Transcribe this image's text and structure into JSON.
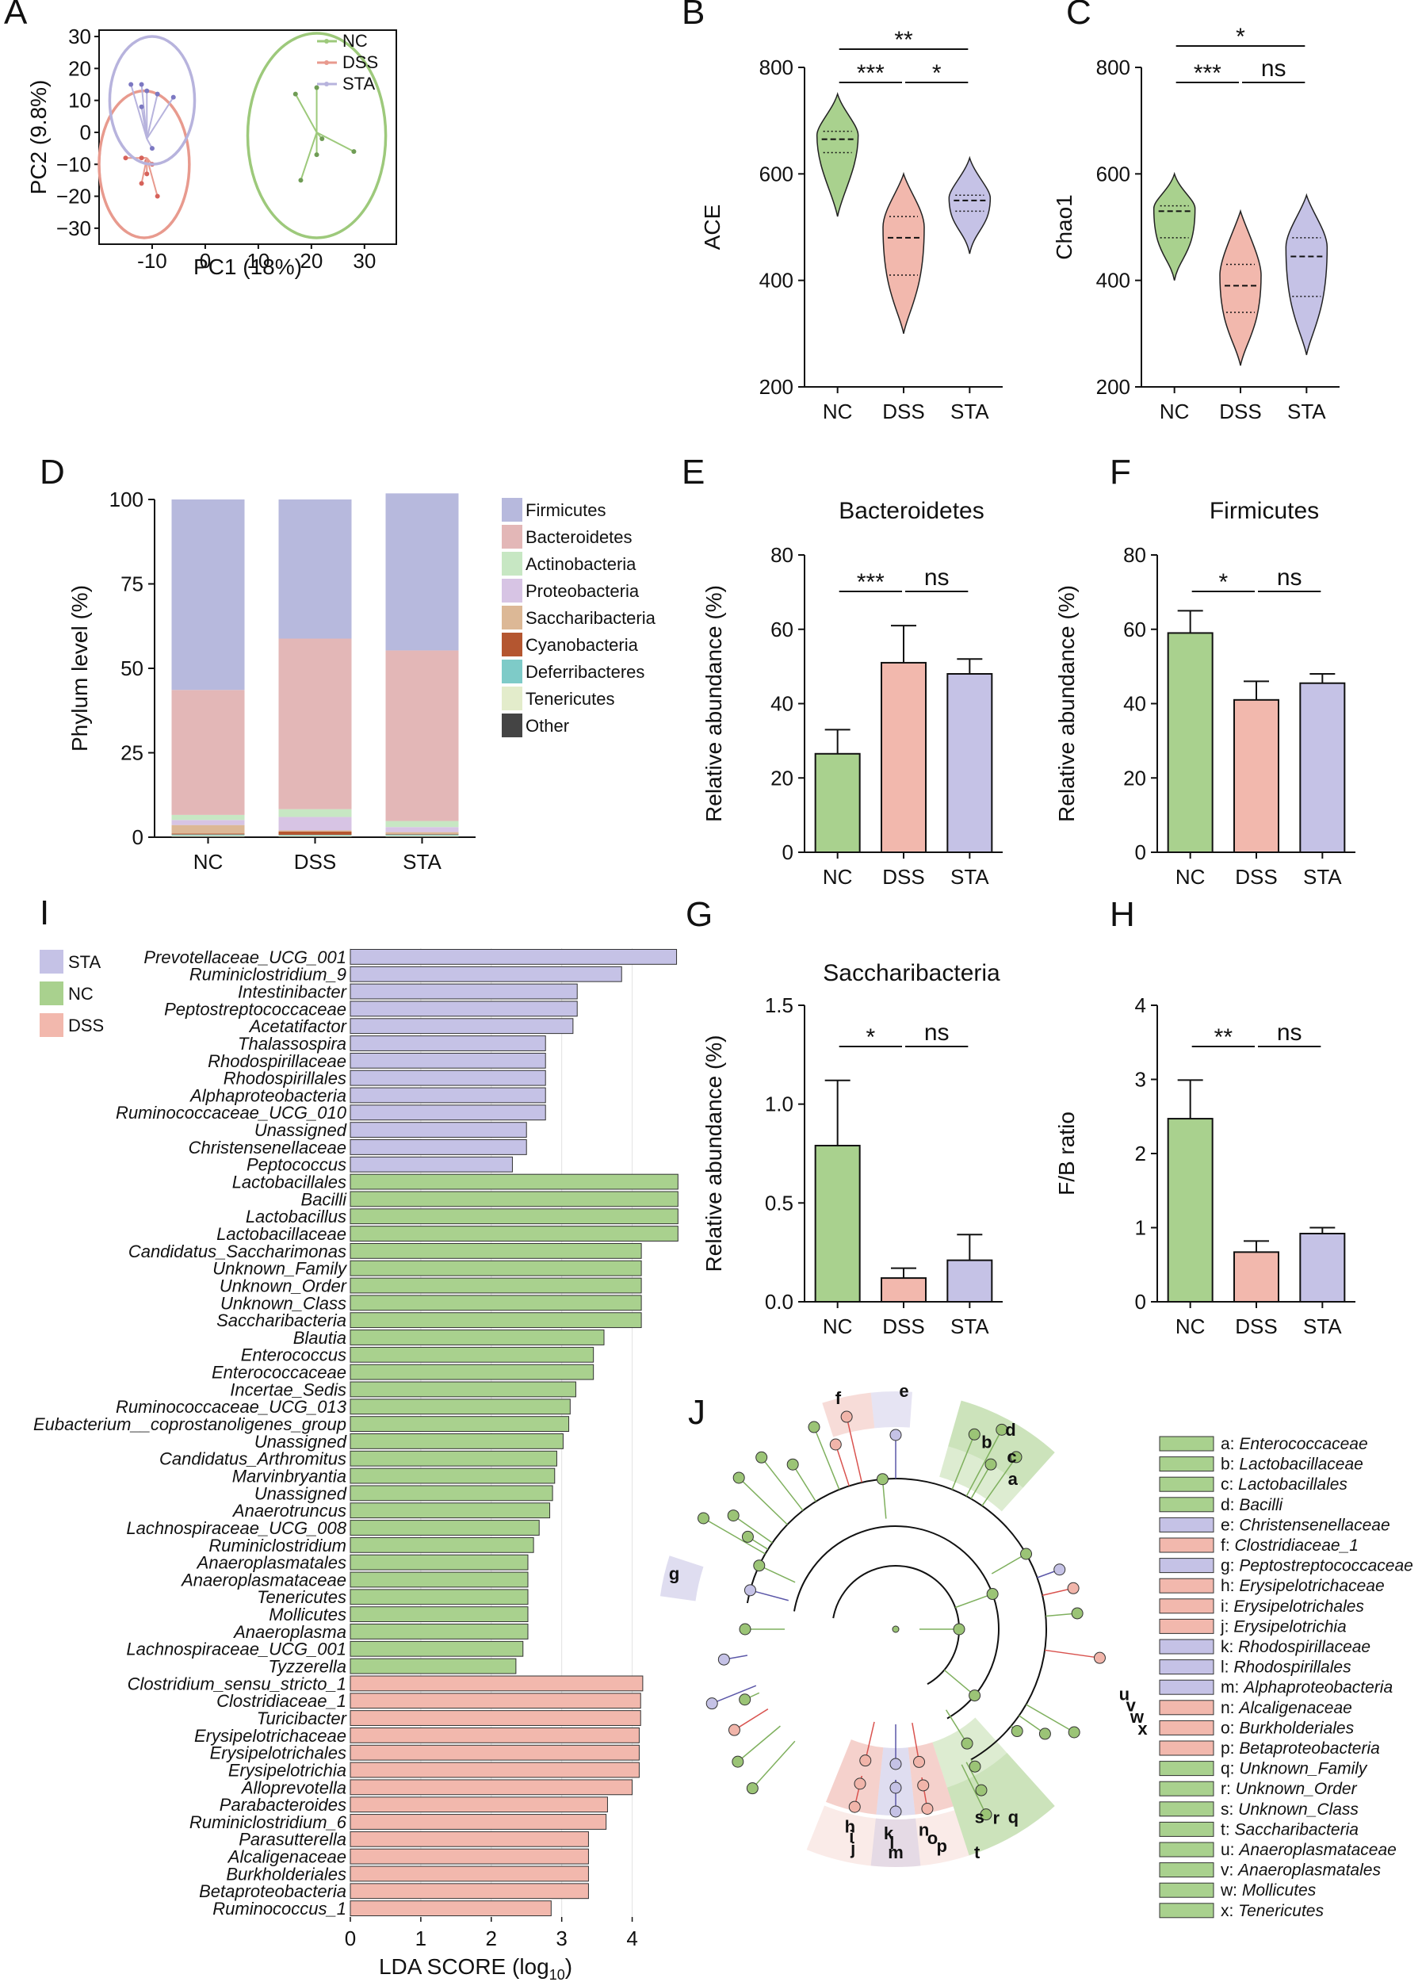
{
  "colors": {
    "NC": "#9dc97b",
    "NC_fill": "#a9d18e",
    "DSS": "#e89a8e",
    "DSS_fill": "#f2b8ad",
    "STA": "#b7b3dd",
    "STA_fill": "#c5c2e6"
  },
  "groups": [
    "NC",
    "DSS",
    "STA"
  ],
  "chart_data": [
    {
      "panel": "A",
      "type": "scatter",
      "xlabel": "PC1 (18%)",
      "ylabel": "PC2 (9.8%)",
      "xlim": [
        -20,
        36
      ],
      "ylim": [
        -35,
        32
      ],
      "xticks": [
        -10,
        0,
        10,
        20,
        30
      ],
      "yticks": [
        30,
        20,
        10,
        0,
        -10,
        -20,
        -30
      ],
      "xtick_labels": [
        "-10",
        "0",
        "10",
        "20",
        "30"
      ],
      "ytick_labels": [
        "30",
        "20",
        "10",
        "0",
        "−10",
        "−20",
        "−30"
      ],
      "legend": [
        "NC",
        "DSS",
        "STA"
      ],
      "series": [
        {
          "name": "NC",
          "centroid": [
            21,
            0
          ],
          "points": [
            [
              17,
              12
            ],
            [
              21,
              14
            ],
            [
              22,
              -2
            ],
            [
              28,
              -6
            ],
            [
              21,
              -7
            ],
            [
              18,
              -15
            ]
          ],
          "ellipse": {
            "cx": 21,
            "cy": -1,
            "rx": 13,
            "ry": 32
          }
        },
        {
          "name": "DSS",
          "centroid": [
            -11,
            -8
          ],
          "points": [
            [
              -15,
              -8
            ],
            [
              -12,
              -8
            ],
            [
              -11,
              -9
            ],
            [
              -10,
              -10
            ],
            [
              -12,
              -16
            ],
            [
              -9,
              -20
            ],
            [
              -11,
              -13
            ]
          ],
          "ellipse": {
            "cx": -11.5,
            "cy": -10,
            "rx": 8.5,
            "ry": 23
          }
        },
        {
          "name": "STA",
          "centroid": [
            -11,
            -2
          ],
          "points": [
            [
              -14,
              15
            ],
            [
              -12,
              15
            ],
            [
              -11,
              13
            ],
            [
              -9,
              12
            ],
            [
              -6,
              11
            ],
            [
              -12,
              8
            ],
            [
              -10,
              -5
            ]
          ],
          "ellipse": {
            "cx": -10,
            "cy": 10,
            "rx": 8,
            "ry": 20
          }
        }
      ]
    },
    {
      "panel": "B",
      "type": "violin",
      "ylabel": "ACE",
      "categories": [
        "NC",
        "DSS",
        "STA"
      ],
      "ylim": [
        200,
        800
      ],
      "yticks": [
        200,
        400,
        600,
        800
      ],
      "medians": [
        665,
        480,
        550
      ],
      "q1": [
        640,
        410,
        530
      ],
      "q3": [
        680,
        520,
        560
      ],
      "ranges": [
        [
          520,
          750
        ],
        [
          300,
          600
        ],
        [
          450,
          630
        ]
      ],
      "significance": [
        {
          "from": 0,
          "to": 2,
          "label": "**",
          "level": 2
        },
        {
          "from": 0,
          "to": 1,
          "label": "***",
          "level": 1
        },
        {
          "from": 1,
          "to": 2,
          "label": "*",
          "level": 1
        }
      ]
    },
    {
      "panel": "C",
      "type": "violin",
      "ylabel": "Chao1",
      "categories": [
        "NC",
        "DSS",
        "STA"
      ],
      "ylim": [
        200,
        800
      ],
      "yticks": [
        200,
        400,
        600,
        800
      ],
      "medians": [
        530,
        390,
        445
      ],
      "q1": [
        480,
        340,
        370
      ],
      "q3": [
        540,
        430,
        480
      ],
      "ranges": [
        [
          400,
          600
        ],
        [
          240,
          530
        ],
        [
          260,
          560
        ]
      ],
      "significance": [
        {
          "from": 0,
          "to": 2,
          "label": "*",
          "level": 2
        },
        {
          "from": 0,
          "to": 1,
          "label": "***",
          "level": 1
        },
        {
          "from": 1,
          "to": 2,
          "label": "ns",
          "level": 1
        }
      ]
    },
    {
      "panel": "D",
      "type": "stacked-bar",
      "ylabel": "Phylum level (%)",
      "categories": [
        "NC",
        "DSS",
        "STA"
      ],
      "ylim": [
        0,
        100
      ],
      "yticks": [
        0,
        25,
        50,
        75,
        100
      ],
      "series": [
        {
          "name": "Other",
          "color": "#444444",
          "values": [
            0.2,
            0.2,
            0.2
          ]
        },
        {
          "name": "Tenericutes",
          "color": "#e3eccb",
          "values": [
            0.3,
            0.3,
            0.3
          ]
        },
        {
          "name": "Deferribacteres",
          "color": "#7ecbc8",
          "values": [
            0.3,
            0.2,
            0.3
          ]
        },
        {
          "name": "Cyanobacteria",
          "color": "#b45630",
          "values": [
            0.3,
            1.0,
            0.2
          ]
        },
        {
          "name": "Saccharibacteria",
          "color": "#dcb896",
          "values": [
            2.5,
            0.3,
            0.5
          ]
        },
        {
          "name": "Proteobacteria",
          "color": "#d7c4e4",
          "values": [
            1.5,
            4.0,
            1.5
          ]
        },
        {
          "name": "Actinobacteria",
          "color": "#c7e7c3",
          "values": [
            1.5,
            2.3,
            1.8
          ]
        },
        {
          "name": "Bacteroidetes",
          "color": "#e3b7b7",
          "values": [
            37.0,
            50.5,
            50.5
          ]
        },
        {
          "name": "Firmicutes",
          "color": "#b7b9dd",
          "values": [
            56.4,
            41.2,
            46.5
          ]
        }
      ],
      "legend_order": [
        "Firmicutes",
        "Bacteroidetes",
        "Actinobacteria",
        "Proteobacteria",
        "Saccharibacteria",
        "Cyanobacteria",
        "Deferribacteres",
        "Tenericutes",
        "Other"
      ]
    },
    {
      "panel": "E",
      "type": "bar",
      "title": "Bacteroidetes",
      "ylabel": "Relative abundance (%)",
      "categories": [
        "NC",
        "DSS",
        "STA"
      ],
      "values": [
        26.5,
        51,
        48
      ],
      "errors": [
        6.5,
        10,
        4
      ],
      "ylim": [
        0,
        80
      ],
      "yticks": [
        0,
        20,
        40,
        60,
        80
      ],
      "ytick_labels": [
        "0",
        "20",
        "40",
        "60",
        "80"
      ],
      "significance": [
        {
          "from": 0,
          "to": 1,
          "label": "***",
          "level": 1
        },
        {
          "from": 1,
          "to": 2,
          "label": "ns",
          "level": 1
        }
      ]
    },
    {
      "panel": "F",
      "type": "bar",
      "title": "Firmicutes",
      "ylabel": "Relative abundance (%)",
      "categories": [
        "NC",
        "DSS",
        "STA"
      ],
      "values": [
        59,
        41,
        45.5
      ],
      "errors": [
        6,
        5,
        2.5
      ],
      "ylim": [
        0,
        80
      ],
      "yticks": [
        0,
        20,
        40,
        60,
        80
      ],
      "ytick_labels": [
        "0",
        "20",
        "40",
        "60",
        "80"
      ],
      "significance": [
        {
          "from": 0,
          "to": 1,
          "label": "*",
          "level": 1
        },
        {
          "from": 1,
          "to": 2,
          "label": "ns",
          "level": 1
        }
      ]
    },
    {
      "panel": "G",
      "type": "bar",
      "title": "Saccharibacteria",
      "ylabel": "Relative abundance (%)",
      "categories": [
        "NC",
        "DSS",
        "STA"
      ],
      "values": [
        0.79,
        0.12,
        0.21
      ],
      "errors": [
        0.33,
        0.05,
        0.13
      ],
      "ylim": [
        0,
        1.5
      ],
      "yticks": [
        0,
        0.5,
        1.0,
        1.5
      ],
      "ytick_labels": [
        "0.0",
        "0.5",
        "1.0",
        "1.5"
      ],
      "significance": [
        {
          "from": 0,
          "to": 1,
          "label": "*",
          "level": 1
        },
        {
          "from": 1,
          "to": 2,
          "label": "ns",
          "level": 1
        }
      ]
    },
    {
      "panel": "H",
      "type": "bar",
      "title": "",
      "ylabel": "F/B ratio",
      "categories": [
        "NC",
        "DSS",
        "STA"
      ],
      "values": [
        2.47,
        0.67,
        0.92
      ],
      "errors": [
        0.52,
        0.15,
        0.08
      ],
      "ylim": [
        0,
        4
      ],
      "yticks": [
        0,
        1,
        2,
        3,
        4
      ],
      "ytick_labels": [
        "0",
        "1",
        "2",
        "3",
        "4"
      ],
      "significance": [
        {
          "from": 0,
          "to": 1,
          "label": "**",
          "level": 1
        },
        {
          "from": 1,
          "to": 2,
          "label": "ns",
          "level": 1
        }
      ]
    },
    {
      "panel": "I",
      "type": "bar-horizontal",
      "xlabel": "LDA SCORE (log",
      "xlabel_sub": "10",
      "xlabel_end": ")",
      "xlim": [
        0,
        4.5
      ],
      "xticks": [
        0,
        1,
        2,
        3,
        4
      ],
      "legend": [
        "STA",
        "NC",
        "DSS"
      ],
      "items": [
        {
          "label": "Prevotellaceae_UCG_001",
          "group": "STA",
          "value": 4.63
        },
        {
          "label": "Ruminiclostridium_9",
          "group": "STA",
          "value": 3.85
        },
        {
          "label": "Intestinibacter",
          "group": "STA",
          "value": 3.22
        },
        {
          "label": "Peptostreptococcaceae",
          "group": "STA",
          "value": 3.22
        },
        {
          "label": "Acetatifactor",
          "group": "STA",
          "value": 3.16
        },
        {
          "label": "Thalassospira",
          "group": "STA",
          "value": 2.77
        },
        {
          "label": "Rhodospirillaceae",
          "group": "STA",
          "value": 2.77
        },
        {
          "label": "Rhodospirillales",
          "group": "STA",
          "value": 2.77
        },
        {
          "label": "Alphaproteobacteria",
          "group": "STA",
          "value": 2.77
        },
        {
          "label": "Ruminococcaceae_UCG_010",
          "group": "STA",
          "value": 2.77
        },
        {
          "label": "Unassigned",
          "group": "STA",
          "value": 2.5
        },
        {
          "label": "Christensenellaceae",
          "group": "STA",
          "value": 2.5
        },
        {
          "label": "Peptococcus",
          "group": "STA",
          "value": 2.3
        },
        {
          "label": "Lactobacillales",
          "group": "NC",
          "value": 4.65
        },
        {
          "label": "Bacilli",
          "group": "NC",
          "value": 4.65
        },
        {
          "label": "Lactobacillus",
          "group": "NC",
          "value": 4.65
        },
        {
          "label": "Lactobacillaceae",
          "group": "NC",
          "value": 4.65
        },
        {
          "label": "Candidatus_Saccharimonas",
          "group": "NC",
          "value": 4.13
        },
        {
          "label": "Unknown_Family",
          "group": "NC",
          "value": 4.13
        },
        {
          "label": "Unknown_Order",
          "group": "NC",
          "value": 4.13
        },
        {
          "label": "Unknown_Class",
          "group": "NC",
          "value": 4.13
        },
        {
          "label": "Saccharibacteria",
          "group": "NC",
          "value": 4.13
        },
        {
          "label": "Blautia",
          "group": "NC",
          "value": 3.6
        },
        {
          "label": "Enterococcus",
          "group": "NC",
          "value": 3.45
        },
        {
          "label": "Enterococcaceae",
          "group": "NC",
          "value": 3.45
        },
        {
          "label": "Incertae_Sedis",
          "group": "NC",
          "value": 3.2
        },
        {
          "label": "Ruminococcaceae_UCG_013",
          "group": "NC",
          "value": 3.12
        },
        {
          "label": "Eubacterium__coprostanoligenes_group",
          "group": "NC",
          "value": 3.1
        },
        {
          "label": "Unassigned",
          "group": "NC",
          "value": 3.02
        },
        {
          "label": "Candidatus_Arthromitus",
          "group": "NC",
          "value": 2.93
        },
        {
          "label": "Marvinbryantia",
          "group": "NC",
          "value": 2.9
        },
        {
          "label": "Unassigned",
          "group": "NC",
          "value": 2.87
        },
        {
          "label": "Anaerotruncus",
          "group": "NC",
          "value": 2.83
        },
        {
          "label": "Lachnospiraceae_UCG_008",
          "group": "NC",
          "value": 2.68
        },
        {
          "label": "Ruminiclostridium",
          "group": "NC",
          "value": 2.6
        },
        {
          "label": "Anaeroplasmatales",
          "group": "NC",
          "value": 2.52
        },
        {
          "label": "Anaeroplasmataceae",
          "group": "NC",
          "value": 2.52
        },
        {
          "label": "Tenericutes",
          "group": "NC",
          "value": 2.52
        },
        {
          "label": "Mollicutes",
          "group": "NC",
          "value": 2.52
        },
        {
          "label": "Anaeroplasma",
          "group": "NC",
          "value": 2.52
        },
        {
          "label": "Lachnospiraceae_UCG_001",
          "group": "NC",
          "value": 2.45
        },
        {
          "label": "Tyzzerella",
          "group": "NC",
          "value": 2.35
        },
        {
          "label": "Clostridium_sensu_stricto_1",
          "group": "DSS",
          "value": 4.15
        },
        {
          "label": "Clostridiaceae_1",
          "group": "DSS",
          "value": 4.12
        },
        {
          "label": "Turicibacter",
          "group": "DSS",
          "value": 4.12
        },
        {
          "label": "Erysipelotrichaceae",
          "group": "DSS",
          "value": 4.1
        },
        {
          "label": "Erysipelotrichales",
          "group": "DSS",
          "value": 4.1
        },
        {
          "label": "Erysipelotrichia",
          "group": "DSS",
          "value": 4.1
        },
        {
          "label": "Alloprevotella",
          "group": "DSS",
          "value": 4.0
        },
        {
          "label": "Parabacteroides",
          "group": "DSS",
          "value": 3.65
        },
        {
          "label": "Ruminiclostridium_6",
          "group": "DSS",
          "value": 3.63
        },
        {
          "label": "Parasutterella",
          "group": "DSS",
          "value": 3.38
        },
        {
          "label": "Alcaligenaceae",
          "group": "DSS",
          "value": 3.38
        },
        {
          "label": "Burkholderiales",
          "group": "DSS",
          "value": 3.38
        },
        {
          "label": "Betaproteobacteria",
          "group": "DSS",
          "value": 3.38
        },
        {
          "label": "Ruminococcus_1",
          "group": "DSS",
          "value": 2.85
        }
      ]
    },
    {
      "panel": "J",
      "type": "cladogram",
      "legend": [
        {
          "letter": "a",
          "name": "Enterococcaceae",
          "group": "NC"
        },
        {
          "letter": "b",
          "name": "Lactobacillaceae",
          "group": "NC"
        },
        {
          "letter": "c",
          "name": "Lactobacillales",
          "group": "NC"
        },
        {
          "letter": "d",
          "name": "Bacilli",
          "group": "NC"
        },
        {
          "letter": "e",
          "name": "Christensenellaceae",
          "group": "STA"
        },
        {
          "letter": "f",
          "name": "Clostridiaceae_1",
          "group": "DSS"
        },
        {
          "letter": "g",
          "name": "Peptostreptococcaceae",
          "group": "STA"
        },
        {
          "letter": "h",
          "name": "Erysipelotrichaceae",
          "group": "DSS"
        },
        {
          "letter": "i",
          "name": "Erysipelotrichales",
          "group": "DSS"
        },
        {
          "letter": "j",
          "name": "Erysipelotrichia",
          "group": "DSS"
        },
        {
          "letter": "k",
          "name": "Rhodospirillaceae",
          "group": "STA"
        },
        {
          "letter": "l",
          "name": "Rhodospirillales",
          "group": "STA"
        },
        {
          "letter": "m",
          "name": "Alphaproteobacteria",
          "group": "STA"
        },
        {
          "letter": "n",
          "name": "Alcaligenaceae",
          "group": "DSS"
        },
        {
          "letter": "o",
          "name": "Burkholderiales",
          "group": "DSS"
        },
        {
          "letter": "p",
          "name": "Betaproteobacteria",
          "group": "DSS"
        },
        {
          "letter": "q",
          "name": "Unknown_Family",
          "group": "NC"
        },
        {
          "letter": "r",
          "name": "Unknown_Order",
          "group": "NC"
        },
        {
          "letter": "s",
          "name": "Unknown_Class",
          "group": "NC"
        },
        {
          "letter": "t",
          "name": "Saccharibacteria",
          "group": "NC"
        },
        {
          "letter": "u",
          "name": "Anaeroplasmataceae",
          "group": "NC"
        },
        {
          "letter": "v",
          "name": "Anaeroplasmatales",
          "group": "NC"
        },
        {
          "letter": "w",
          "name": "Mollicutes",
          "group": "NC"
        },
        {
          "letter": "x",
          "name": "Tenericutes",
          "group": "NC"
        }
      ]
    }
  ],
  "panel_letters": {
    "A": "A",
    "B": "B",
    "C": "C",
    "D": "D",
    "E": "E",
    "F": "F",
    "G": "G",
    "H": "H",
    "I": "I",
    "J": "J"
  }
}
